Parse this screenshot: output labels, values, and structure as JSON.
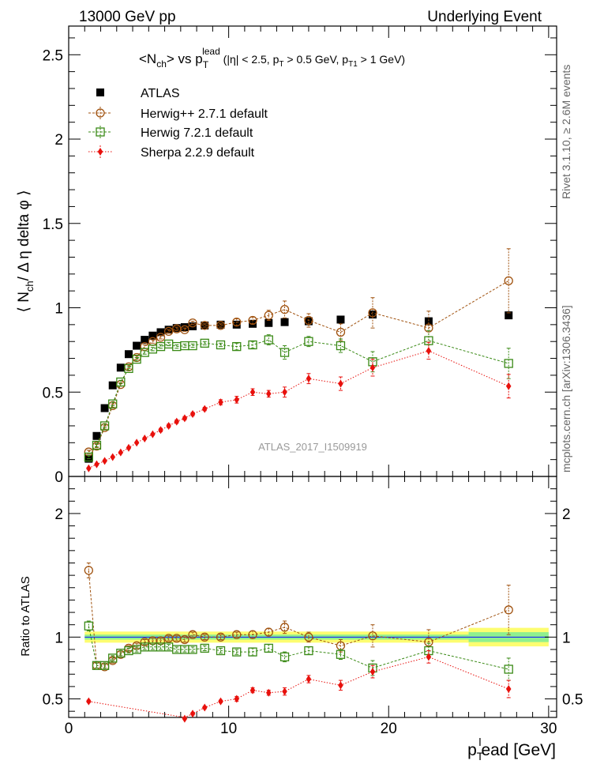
{
  "header": {
    "left": "13000 GeV pp",
    "right": "Underlying Event"
  },
  "side_labels": {
    "rivet": "Rivet 3.1.10, ≥ 2.6M events",
    "mcplots": "mcplots.cern.ch [arXiv:1306.3436]"
  },
  "watermark": "ATLAS_2017_I1509919",
  "chart_data": [
    {
      "type": "scatter",
      "title": "<N_ch> vs p_T^lead (|η| < 2.5, p_T > 0.5 GeV, p_T1 > 1 GeV)",
      "title_parts": {
        "a": "<N",
        "a_sub": "ch",
        "b": "> vs p",
        "b_sub": "T",
        "b_sup": "lead",
        "c": " (|η| < 2.5, p",
        "c_sub": "T",
        "d": " > 0.5 GeV, p",
        "d_sub": "T1",
        "e": " > 1 GeV)"
      },
      "ylabel": "⟨ N_ch/ Δ η delta φ ⟩",
      "ylabel_parts": {
        "a": "⟨ N",
        "a_sub": "ch",
        "b": "/ Δ η delta φ ⟩"
      },
      "xlim": [
        0,
        30.5
      ],
      "ylim": [
        0,
        2.67
      ],
      "y_ticks": [
        0.5,
        1,
        1.5,
        2,
        2.5
      ],
      "y_tick_labels": [
        "0.5",
        "1",
        "1.5",
        "2",
        "2.5"
      ],
      "y_zero_label": "0",
      "legend_position": "top-left",
      "series": [
        {
          "name": "ATLAS",
          "color": "#000000",
          "marker": "filled-square",
          "x": [
            1.25,
            1.75,
            2.25,
            2.75,
            3.25,
            3.75,
            4.25,
            4.75,
            5.25,
            5.75,
            6.25,
            6.75,
            7.25,
            7.75,
            8.5,
            9.5,
            10.5,
            11.5,
            12.5,
            13.5,
            15,
            17,
            19,
            22.5,
            27.5
          ],
          "y": [
            0.105,
            0.24,
            0.405,
            0.54,
            0.645,
            0.725,
            0.775,
            0.81,
            0.835,
            0.855,
            0.87,
            0.88,
            0.885,
            0.89,
            0.895,
            0.9,
            0.9,
            0.905,
            0.91,
            0.915,
            0.92,
            0.93,
            0.96,
            0.92,
            0.955
          ]
        },
        {
          "name": "Herwig++ 2.7.1 default",
          "color": "#a0520f",
          "marker": "open-circle",
          "x": [
            1.25,
            1.75,
            2.25,
            2.75,
            3.25,
            3.75,
            4.25,
            4.75,
            5.25,
            5.75,
            6.25,
            6.75,
            7.25,
            7.75,
            8.5,
            9.5,
            10.5,
            11.5,
            12.5,
            13.5,
            15,
            17,
            19,
            22.5,
            27.5
          ],
          "y": [
            0.145,
            0.18,
            0.29,
            0.42,
            0.545,
            0.65,
            0.705,
            0.77,
            0.8,
            0.825,
            0.86,
            0.875,
            0.87,
            0.91,
            0.895,
            0.895,
            0.915,
            0.925,
            0.955,
            0.99,
            0.925,
            0.855,
            0.97,
            0.88,
            1.16
          ],
          "err": [
            0.01,
            0.01,
            0.01,
            0.01,
            0.01,
            0.01,
            0.01,
            0.01,
            0.01,
            0.01,
            0.01,
            0.01,
            0.01,
            0.01,
            0.01,
            0.01,
            0.02,
            0.02,
            0.03,
            0.05,
            0.04,
            0.05,
            0.09,
            0.1,
            0.19
          ]
        },
        {
          "name": "Herwig 7.2.1 default",
          "color": "#3a8a16",
          "marker": "open-square",
          "x": [
            1.25,
            1.75,
            2.25,
            2.75,
            3.25,
            3.75,
            4.25,
            4.75,
            5.25,
            5.75,
            6.25,
            6.75,
            7.25,
            7.75,
            8.5,
            9.5,
            10.5,
            11.5,
            12.5,
            13.5,
            15,
            17,
            19,
            22.5,
            27.5
          ],
          "y": [
            0.115,
            0.185,
            0.3,
            0.43,
            0.56,
            0.64,
            0.695,
            0.735,
            0.755,
            0.77,
            0.785,
            0.77,
            0.775,
            0.775,
            0.79,
            0.78,
            0.77,
            0.78,
            0.81,
            0.735,
            0.8,
            0.775,
            0.68,
            0.805,
            0.67
          ],
          "err": [
            0.01,
            0.01,
            0.01,
            0.01,
            0.01,
            0.01,
            0.01,
            0.01,
            0.01,
            0.01,
            0.01,
            0.01,
            0.01,
            0.01,
            0.01,
            0.01,
            0.02,
            0.02,
            0.03,
            0.04,
            0.03,
            0.04,
            0.06,
            0.06,
            0.09
          ]
        },
        {
          "name": "Sherpa 2.2.9 default",
          "color": "#e8100c",
          "marker": "filled-diamond",
          "x": [
            1.25,
            1.75,
            2.25,
            2.75,
            3.25,
            3.75,
            4.25,
            4.75,
            5.25,
            5.75,
            6.25,
            6.75,
            7.25,
            7.75,
            8.5,
            9.5,
            10.5,
            11.5,
            12.5,
            13.5,
            15,
            17,
            19,
            22.5,
            27.5
          ],
          "y": [
            0.048,
            0.072,
            0.092,
            0.115,
            0.142,
            0.17,
            0.2,
            0.225,
            0.25,
            0.275,
            0.3,
            0.325,
            0.345,
            0.37,
            0.4,
            0.44,
            0.455,
            0.5,
            0.49,
            0.5,
            0.58,
            0.55,
            0.645,
            0.745,
            0.535
          ],
          "err": [
            0.005,
            0.005,
            0.005,
            0.005,
            0.005,
            0.005,
            0.005,
            0.005,
            0.005,
            0.01,
            0.01,
            0.01,
            0.01,
            0.01,
            0.01,
            0.015,
            0.02,
            0.02,
            0.02,
            0.03,
            0.03,
            0.04,
            0.05,
            0.05,
            0.07
          ]
        }
      ]
    },
    {
      "type": "scatter",
      "ylabel": "Ratio to ATLAS",
      "xlabel": "p_T^lead [GeV]",
      "xlabel_parts": {
        "a": "p",
        "a_sub": "T",
        "a_sup": "l",
        "b": "ead [GeV]"
      },
      "xlim": [
        0,
        30.5
      ],
      "ylim": [
        0.35,
        2.3
      ],
      "x_ticks": [
        0,
        10,
        20,
        30
      ],
      "x_tick_labels": [
        "0",
        "10",
        "20",
        "30"
      ],
      "y_ticks": [
        0.5,
        1,
        2
      ],
      "y_tick_labels": [
        "0.5",
        "1",
        "2"
      ],
      "band": {
        "inner_color": "#8ff08f",
        "outer_color": "#fdfd70",
        "center_line_color": "#0e0eff",
        "bins": [
          {
            "x0": 1,
            "x1": 25,
            "inner": 0.02,
            "outer": 0.045
          },
          {
            "x0": 25,
            "x1": 30,
            "inner": 0.04,
            "outer": 0.075
          }
        ]
      },
      "series": [
        {
          "name": "Herwig++ 2.7.1 default",
          "color": "#a0520f",
          "marker": "open-circle",
          "x": [
            1.25,
            1.75,
            2.25,
            2.75,
            3.25,
            3.75,
            4.25,
            4.75,
            5.25,
            5.75,
            6.25,
            6.75,
            7.25,
            7.75,
            8.5,
            9.5,
            10.5,
            11.5,
            12.5,
            13.5,
            15,
            17,
            19,
            22.5,
            27.5
          ],
          "y": [
            1.54,
            0.77,
            0.76,
            0.81,
            0.86,
            0.91,
            0.93,
            0.96,
            0.97,
            0.97,
            0.99,
            0.99,
            0.98,
            1.02,
            1.0,
            1.0,
            1.02,
            1.02,
            1.04,
            1.08,
            1.0,
            0.93,
            1.01,
            0.96,
            1.22
          ],
          "err": [
            0.06,
            0.02,
            0.02,
            0.02,
            0.02,
            0.02,
            0.02,
            0.02,
            0.02,
            0.02,
            0.02,
            0.02,
            0.02,
            0.02,
            0.02,
            0.02,
            0.02,
            0.03,
            0.03,
            0.05,
            0.04,
            0.05,
            0.09,
            0.1,
            0.2
          ]
        },
        {
          "name": "Herwig 7.2.1 default",
          "color": "#3a8a16",
          "marker": "open-square",
          "x": [
            1.25,
            1.75,
            2.25,
            2.75,
            3.25,
            3.75,
            4.25,
            4.75,
            5.25,
            5.75,
            6.25,
            6.75,
            7.25,
            7.75,
            8.5,
            9.5,
            10.5,
            11.5,
            12.5,
            13.5,
            15,
            17,
            19,
            22.5,
            27.5
          ],
          "y": [
            1.09,
            0.77,
            0.77,
            0.83,
            0.87,
            0.89,
            0.9,
            0.92,
            0.92,
            0.92,
            0.92,
            0.9,
            0.9,
            0.9,
            0.91,
            0.89,
            0.88,
            0.88,
            0.91,
            0.84,
            0.89,
            0.86,
            0.75,
            0.89,
            0.74
          ],
          "err": [
            0.04,
            0.02,
            0.02,
            0.02,
            0.02,
            0.02,
            0.02,
            0.02,
            0.02,
            0.02,
            0.02,
            0.02,
            0.02,
            0.02,
            0.02,
            0.02,
            0.02,
            0.03,
            0.03,
            0.04,
            0.03,
            0.04,
            0.06,
            0.06,
            0.09
          ]
        },
        {
          "name": "Sherpa 2.2.9 default",
          "color": "#e8100c",
          "marker": "filled-diamond",
          "x": [
            1.25,
            7.25,
            7.75,
            8.5,
            9.5,
            10.5,
            11.5,
            12.5,
            13.5,
            15,
            17,
            19,
            22.5,
            27.5
          ],
          "y": [
            0.48,
            0.34,
            0.38,
            0.43,
            0.48,
            0.5,
            0.57,
            0.55,
            0.56,
            0.66,
            0.61,
            0.72,
            0.84,
            0.58
          ],
          "err": [
            0.01,
            0.01,
            0.01,
            0.01,
            0.01,
            0.02,
            0.02,
            0.02,
            0.03,
            0.03,
            0.04,
            0.05,
            0.05,
            0.07
          ]
        }
      ]
    }
  ]
}
